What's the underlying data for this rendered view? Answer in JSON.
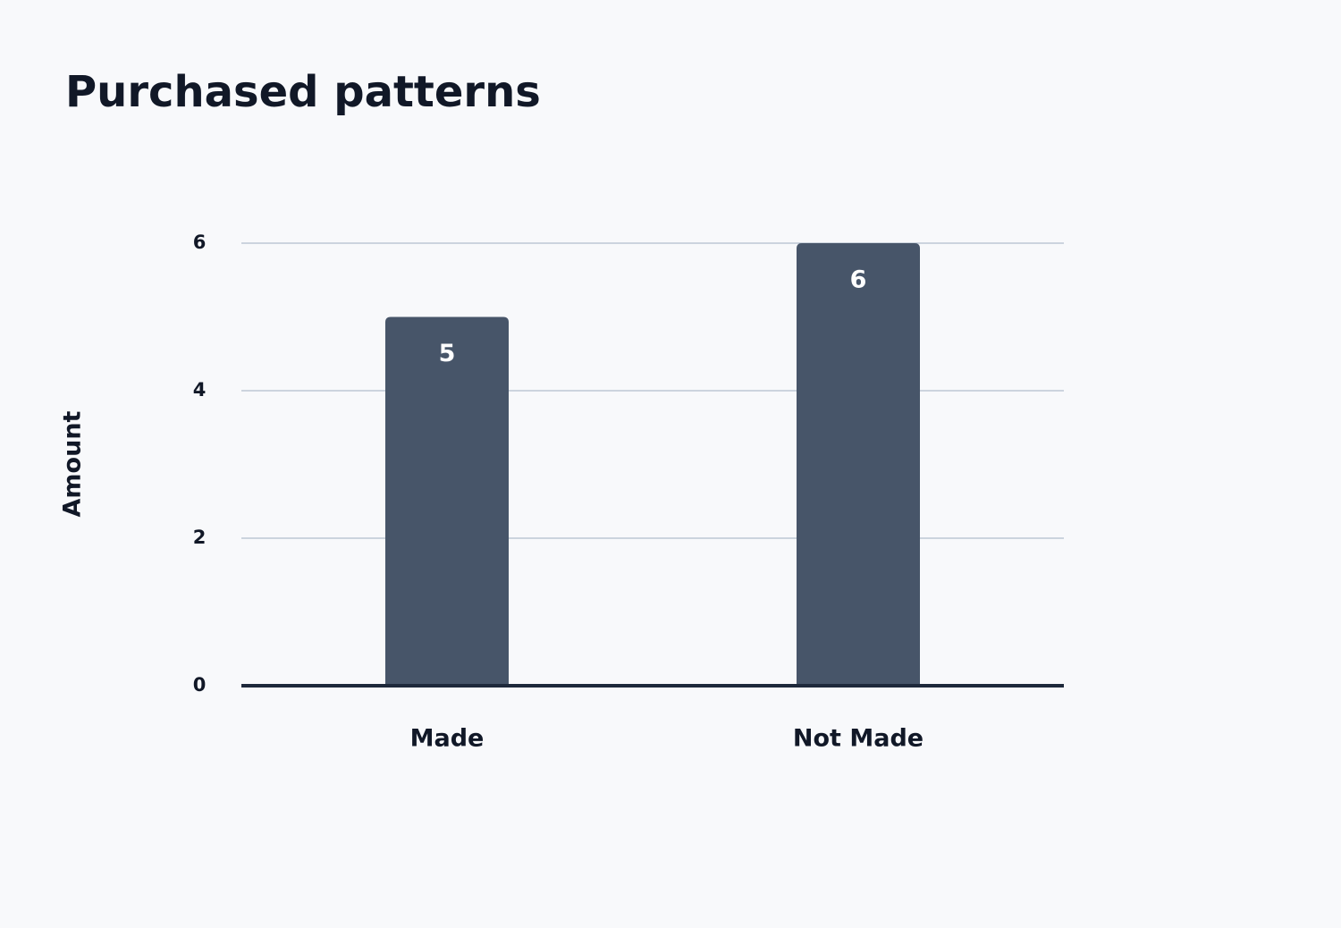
{
  "chart_data": {
    "type": "bar",
    "title": "Purchased patterns",
    "y_label": "Amount",
    "categories": [
      "Made",
      "Not Made"
    ],
    "values": [
      5,
      6
    ],
    "color": "#475569",
    "ylim": [
      0,
      6
    ],
    "yticks": [
      0,
      2,
      4,
      6
    ],
    "grid": true
  }
}
